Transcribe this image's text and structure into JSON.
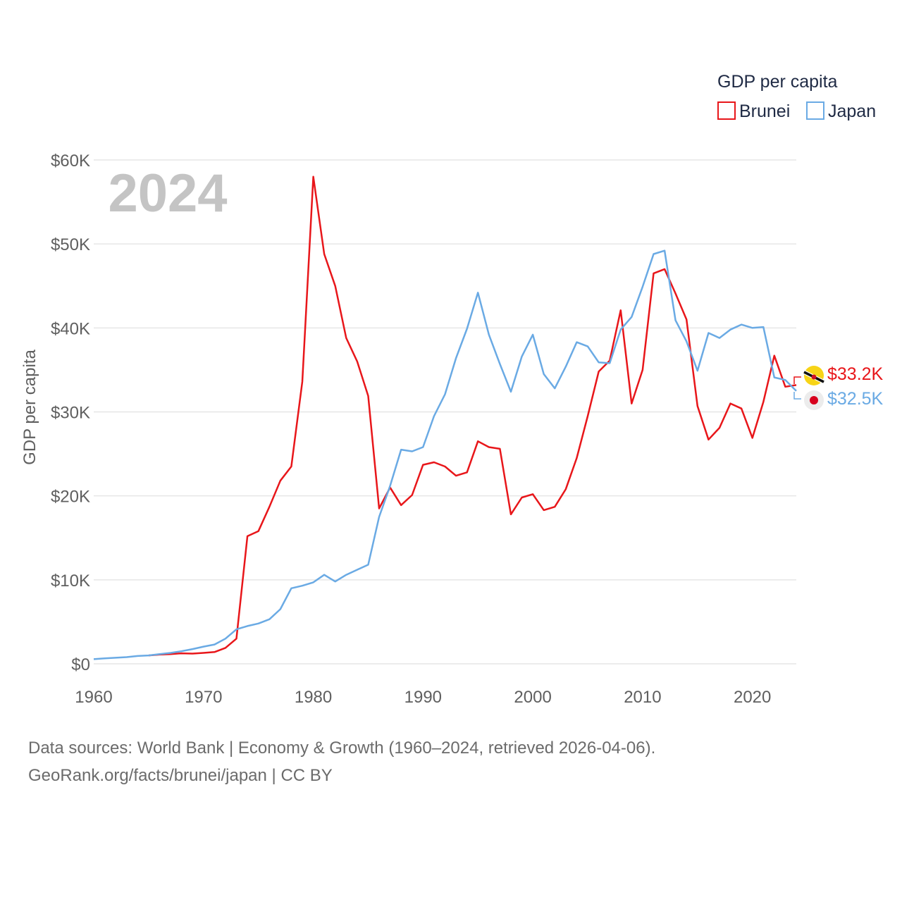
{
  "chart_data": {
    "type": "line",
    "title": "GDP per capita",
    "current_year_label": "2024",
    "ylabel": "GDP per capita",
    "xlabel": "",
    "xlim": [
      1960,
      2024
    ],
    "ylim": [
      0,
      60000
    ],
    "x_ticks": [
      1960,
      1970,
      1980,
      1990,
      2000,
      2010,
      2020
    ],
    "y_ticks": [
      0,
      10000,
      20000,
      30000,
      40000,
      50000,
      60000
    ],
    "y_tick_labels": [
      "$0",
      "$10K",
      "$20K",
      "$30K",
      "$40K",
      "$50K",
      "$60K"
    ],
    "grid": true,
    "legend": {
      "title": "GDP per capita",
      "position": "top-right"
    },
    "series": [
      {
        "name": "Brunei",
        "color": "#e8161a",
        "end_label": "$33.2K",
        "flag_icon": "brunei-flag-icon",
        "points": [
          [
            1965,
            1000
          ],
          [
            1966,
            1100
          ],
          [
            1967,
            1150
          ],
          [
            1968,
            1250
          ],
          [
            1969,
            1220
          ],
          [
            1970,
            1300
          ],
          [
            1971,
            1400
          ],
          [
            1972,
            1900
          ],
          [
            1973,
            3000
          ],
          [
            1974,
            15200
          ],
          [
            1975,
            15800
          ],
          [
            1976,
            18700
          ],
          [
            1977,
            21800
          ],
          [
            1978,
            23500
          ],
          [
            1979,
            33600
          ],
          [
            1980,
            58000
          ],
          [
            1981,
            48800
          ],
          [
            1982,
            45000
          ],
          [
            1983,
            38800
          ],
          [
            1984,
            36000
          ],
          [
            1985,
            31900
          ],
          [
            1986,
            18500
          ],
          [
            1987,
            21000
          ],
          [
            1988,
            18900
          ],
          [
            1989,
            20100
          ],
          [
            1990,
            23700
          ],
          [
            1991,
            24000
          ],
          [
            1992,
            23500
          ],
          [
            1993,
            22400
          ],
          [
            1994,
            22800
          ],
          [
            1995,
            26500
          ],
          [
            1996,
            25800
          ],
          [
            1997,
            25600
          ],
          [
            1998,
            17800
          ],
          [
            1999,
            19800
          ],
          [
            2000,
            20200
          ],
          [
            2001,
            18300
          ],
          [
            2002,
            18700
          ],
          [
            2003,
            20800
          ],
          [
            2004,
            24500
          ],
          [
            2005,
            29500
          ],
          [
            2006,
            34800
          ],
          [
            2007,
            36100
          ],
          [
            2008,
            42100
          ],
          [
            2009,
            31000
          ],
          [
            2010,
            35000
          ],
          [
            2011,
            46500
          ],
          [
            2012,
            47000
          ],
          [
            2013,
            44100
          ],
          [
            2014,
            41000
          ],
          [
            2015,
            30700
          ],
          [
            2016,
            26700
          ],
          [
            2017,
            28100
          ],
          [
            2018,
            31000
          ],
          [
            2019,
            30400
          ],
          [
            2020,
            26900
          ],
          [
            2021,
            31200
          ],
          [
            2022,
            36700
          ],
          [
            2023,
            33000
          ],
          [
            2024,
            33200
          ]
        ]
      },
      {
        "name": "Japan",
        "color": "#6aaae4",
        "end_label": "$32.5K",
        "flag_icon": "japan-flag-icon",
        "points": [
          [
            1960,
            550
          ],
          [
            1961,
            650
          ],
          [
            1962,
            720
          ],
          [
            1963,
            800
          ],
          [
            1964,
            930
          ],
          [
            1965,
            1000
          ],
          [
            1966,
            1150
          ],
          [
            1967,
            1300
          ],
          [
            1968,
            1500
          ],
          [
            1969,
            1750
          ],
          [
            1970,
            2050
          ],
          [
            1971,
            2300
          ],
          [
            1972,
            3000
          ],
          [
            1973,
            4100
          ],
          [
            1974,
            4500
          ],
          [
            1975,
            4800
          ],
          [
            1976,
            5300
          ],
          [
            1977,
            6500
          ],
          [
            1978,
            9000
          ],
          [
            1979,
            9300
          ],
          [
            1980,
            9700
          ],
          [
            1981,
            10600
          ],
          [
            1982,
            9800
          ],
          [
            1983,
            10600
          ],
          [
            1984,
            11200
          ],
          [
            1985,
            11800
          ],
          [
            1986,
            17500
          ],
          [
            1987,
            21200
          ],
          [
            1988,
            25500
          ],
          [
            1989,
            25300
          ],
          [
            1990,
            25800
          ],
          [
            1991,
            29500
          ],
          [
            1992,
            32100
          ],
          [
            1993,
            36400
          ],
          [
            1994,
            39900
          ],
          [
            1995,
            44200
          ],
          [
            1996,
            39200
          ],
          [
            1997,
            35700
          ],
          [
            1998,
            32400
          ],
          [
            1999,
            36600
          ],
          [
            2000,
            39200
          ],
          [
            2001,
            34500
          ],
          [
            2002,
            32800
          ],
          [
            2003,
            35400
          ],
          [
            2004,
            38300
          ],
          [
            2005,
            37800
          ],
          [
            2006,
            35900
          ],
          [
            2007,
            35800
          ],
          [
            2008,
            39800
          ],
          [
            2009,
            41300
          ],
          [
            2010,
            44900
          ],
          [
            2011,
            48800
          ],
          [
            2012,
            49200
          ],
          [
            2013,
            40900
          ],
          [
            2014,
            38400
          ],
          [
            2015,
            34900
          ],
          [
            2016,
            39400
          ],
          [
            2017,
            38800
          ],
          [
            2018,
            39800
          ],
          [
            2019,
            40400
          ],
          [
            2020,
            40000
          ],
          [
            2021,
            40100
          ],
          [
            2022,
            34100
          ],
          [
            2023,
            33800
          ],
          [
            2024,
            32500
          ]
        ]
      }
    ]
  },
  "footer": {
    "sources": "Data sources: World Bank | Economy & Growth (1960–2024, retrieved 2026-04-06).",
    "credit": "GeoRank.org/facts/brunei/japan | CC BY"
  }
}
